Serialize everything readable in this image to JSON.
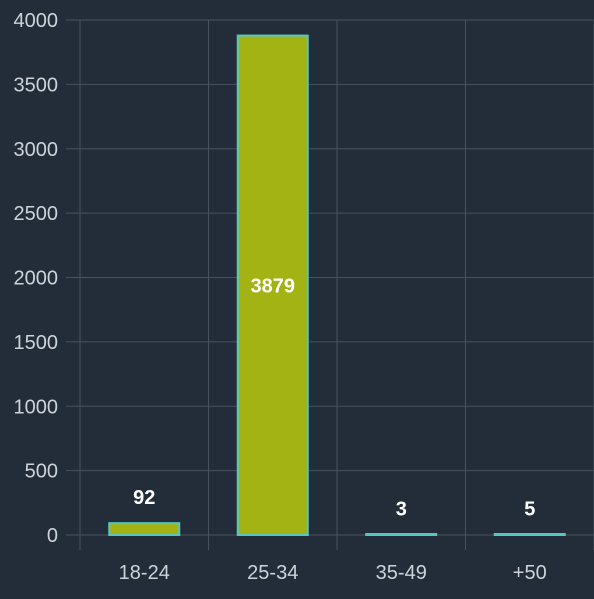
{
  "chart_data": {
    "type": "bar",
    "title": "",
    "xlabel": "",
    "ylabel": "",
    "categories": [
      "18-24",
      "25-34",
      "35-49",
      "+50"
    ],
    "values": [
      92,
      3879,
      3,
      5
    ],
    "data_labels": [
      "92",
      "3879",
      "3",
      "5"
    ],
    "ylim": [
      0,
      4000
    ],
    "yticks": [
      0,
      500,
      1000,
      1500,
      2000,
      2500,
      3000,
      3500,
      4000
    ],
    "ytick_labels": [
      "0",
      "500",
      "1000",
      "1500",
      "2000",
      "2500",
      "3000",
      "3500",
      "4000"
    ],
    "grid": true,
    "legend": "none",
    "colors": {
      "background": "#222d39",
      "bar_fill": "#a3b314",
      "bar_border": "#56c7bf",
      "grid": "#46525e",
      "tick_text": "#cdd3d9",
      "data_label": "#ffffff"
    }
  }
}
